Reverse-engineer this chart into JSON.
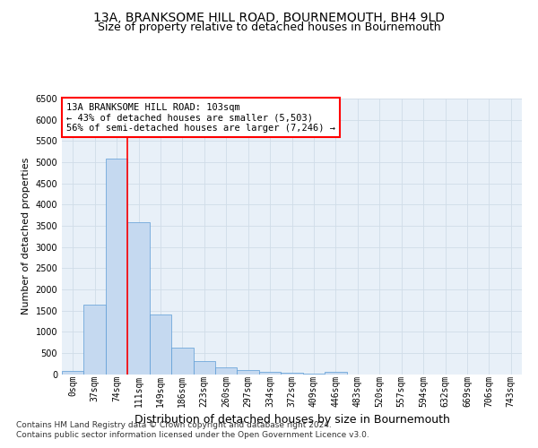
{
  "title1": "13A, BRANKSOME HILL ROAD, BOURNEMOUTH, BH4 9LD",
  "title2": "Size of property relative to detached houses in Bournemouth",
  "xlabel": "Distribution of detached houses by size in Bournemouth",
  "ylabel": "Number of detached properties",
  "footer1": "Contains HM Land Registry data © Crown copyright and database right 2024.",
  "footer2": "Contains public sector information licensed under the Open Government Licence v3.0.",
  "bar_labels": [
    "0sqm",
    "37sqm",
    "74sqm",
    "111sqm",
    "149sqm",
    "186sqm",
    "223sqm",
    "260sqm",
    "297sqm",
    "334sqm",
    "372sqm",
    "409sqm",
    "446sqm",
    "483sqm",
    "520sqm",
    "557sqm",
    "594sqm",
    "632sqm",
    "669sqm",
    "706sqm",
    "743sqm"
  ],
  "bar_values": [
    75,
    1640,
    5080,
    3580,
    1410,
    620,
    310,
    155,
    100,
    60,
    30,
    15,
    60,
    0,
    0,
    0,
    0,
    0,
    0,
    0,
    0
  ],
  "bar_color": "#c5d9f0",
  "bar_edge_color": "#5b9bd5",
  "vline_color": "red",
  "annotation_text": "13A BRANKSOME HILL ROAD: 103sqm\n← 43% of detached houses are smaller (5,503)\n56% of semi-detached houses are larger (7,246) →",
  "annotation_box_color": "white",
  "annotation_box_edge": "red",
  "ylim": [
    0,
    6500
  ],
  "yticks": [
    0,
    500,
    1000,
    1500,
    2000,
    2500,
    3000,
    3500,
    4000,
    4500,
    5000,
    5500,
    6000,
    6500
  ],
  "grid_color": "#d0dce8",
  "bg_color": "#e8f0f8",
  "fig_bg": "#ffffff",
  "title1_fontsize": 10,
  "title2_fontsize": 9,
  "xlabel_fontsize": 9,
  "ylabel_fontsize": 8,
  "tick_fontsize": 7,
  "annotation_fontsize": 7.5,
  "footer_fontsize": 6.5
}
